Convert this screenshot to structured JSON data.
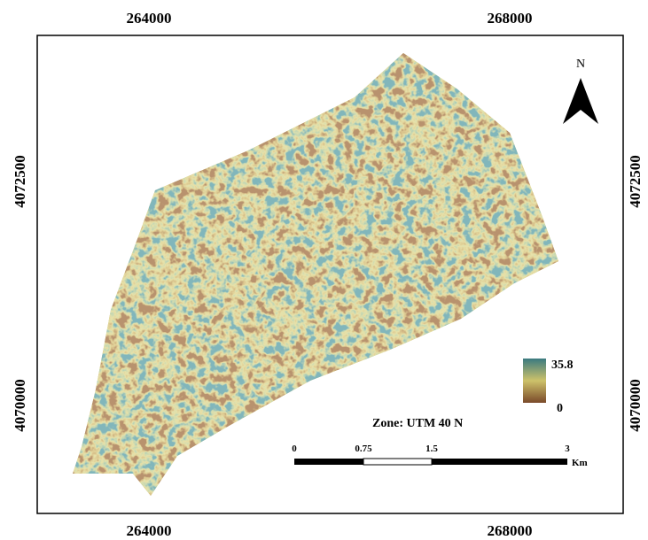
{
  "map": {
    "top_labels": [
      "264000",
      "268000"
    ],
    "bottom_labels": [
      "264000",
      "268000"
    ],
    "left_labels": [
      "4072500",
      "4070000"
    ],
    "right_labels": [
      "4072500",
      "4070000"
    ],
    "north": "N",
    "legend": {
      "max": "35.8",
      "min": "0"
    },
    "zone": "Zone: UTM 40 N",
    "scale_bar": {
      "labels": [
        "0",
        "0.75",
        "1.5",
        "3"
      ],
      "unit": "Km"
    }
  }
}
